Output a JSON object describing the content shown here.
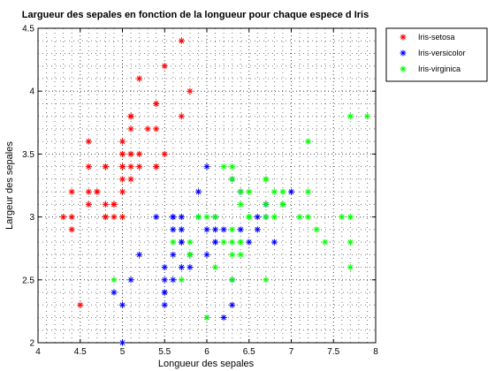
{
  "chart_data": {
    "type": "scatter",
    "title": "Largueur des sepales en fonction de la longueur pour chaque espece d Iris",
    "xlabel": "Longueur des sepales",
    "ylabel": "Largeur des sepales",
    "xlim": [
      4,
      8
    ],
    "ylim": [
      2,
      4.5
    ],
    "xticks": [
      "4",
      "4.5",
      "5",
      "5.5",
      "6",
      "6.5",
      "7",
      "7.5",
      "8"
    ],
    "yticks": [
      "2",
      "2.5",
      "3",
      "3.5",
      "4",
      "4.5"
    ],
    "grid": "dotted",
    "legend_position": "outside-top-right",
    "marker": "asterisk",
    "series": [
      {
        "name": "Iris-setosa",
        "color": "#ff0000",
        "points": [
          [
            5.1,
            3.5
          ],
          [
            4.9,
            3.0
          ],
          [
            4.7,
            3.2
          ],
          [
            4.6,
            3.1
          ],
          [
            5.0,
            3.6
          ],
          [
            5.4,
            3.9
          ],
          [
            4.6,
            3.4
          ],
          [
            5.0,
            3.4
          ],
          [
            4.4,
            2.9
          ],
          [
            4.9,
            3.1
          ],
          [
            5.4,
            3.7
          ],
          [
            4.8,
            3.4
          ],
          [
            4.8,
            3.0
          ],
          [
            4.3,
            3.0
          ],
          [
            5.8,
            4.0
          ],
          [
            5.7,
            4.4
          ],
          [
            5.4,
            3.9
          ],
          [
            5.1,
            3.5
          ],
          [
            5.7,
            3.8
          ],
          [
            5.1,
            3.8
          ],
          [
            5.4,
            3.4
          ],
          [
            5.1,
            3.7
          ],
          [
            4.6,
            3.6
          ],
          [
            5.1,
            3.3
          ],
          [
            4.8,
            3.4
          ],
          [
            5.0,
            3.0
          ],
          [
            5.0,
            3.4
          ],
          [
            5.2,
            3.5
          ],
          [
            5.2,
            3.4
          ],
          [
            4.7,
            3.2
          ],
          [
            4.8,
            3.1
          ],
          [
            5.4,
            3.4
          ],
          [
            5.2,
            4.1
          ],
          [
            5.5,
            4.2
          ],
          [
            4.9,
            3.1
          ],
          [
            5.0,
            3.2
          ],
          [
            5.5,
            3.5
          ],
          [
            4.9,
            3.1
          ],
          [
            4.4,
            3.0
          ],
          [
            5.1,
            3.4
          ],
          [
            5.0,
            3.5
          ],
          [
            4.5,
            2.3
          ],
          [
            4.4,
            3.2
          ],
          [
            5.0,
            3.5
          ],
          [
            5.1,
            3.8
          ],
          [
            4.8,
            3.0
          ],
          [
            5.1,
            3.8
          ],
          [
            4.6,
            3.2
          ],
          [
            5.3,
            3.7
          ],
          [
            5.0,
            3.3
          ]
        ]
      },
      {
        "name": "Iris-versicolor",
        "color": "#0000ff",
        "points": [
          [
            7.0,
            3.2
          ],
          [
            6.4,
            3.2
          ],
          [
            6.9,
            3.1
          ],
          [
            5.5,
            2.3
          ],
          [
            6.5,
            2.8
          ],
          [
            5.7,
            2.8
          ],
          [
            6.3,
            3.3
          ],
          [
            4.9,
            2.4
          ],
          [
            6.6,
            2.9
          ],
          [
            5.2,
            2.7
          ],
          [
            5.0,
            2.0
          ],
          [
            5.9,
            3.0
          ],
          [
            6.0,
            2.2
          ],
          [
            6.1,
            2.9
          ],
          [
            5.6,
            2.9
          ],
          [
            6.7,
            3.1
          ],
          [
            5.6,
            3.0
          ],
          [
            5.8,
            2.7
          ],
          [
            6.2,
            2.2
          ],
          [
            5.6,
            2.5
          ],
          [
            5.9,
            3.2
          ],
          [
            6.1,
            2.8
          ],
          [
            6.3,
            2.5
          ],
          [
            6.1,
            2.8
          ],
          [
            6.4,
            2.9
          ],
          [
            6.6,
            3.0
          ],
          [
            6.8,
            2.8
          ],
          [
            6.7,
            3.0
          ],
          [
            6.0,
            2.9
          ],
          [
            5.7,
            2.6
          ],
          [
            5.5,
            2.4
          ],
          [
            5.5,
            2.4
          ],
          [
            5.8,
            2.7
          ],
          [
            6.0,
            2.7
          ],
          [
            5.4,
            3.0
          ],
          [
            6.0,
            3.4
          ],
          [
            6.7,
            3.1
          ],
          [
            6.3,
            2.3
          ],
          [
            5.6,
            3.0
          ],
          [
            5.5,
            2.5
          ],
          [
            5.5,
            2.6
          ],
          [
            6.1,
            3.0
          ],
          [
            5.8,
            2.6
          ],
          [
            5.0,
            2.3
          ],
          [
            5.6,
            2.7
          ],
          [
            5.7,
            3.0
          ],
          [
            5.7,
            2.9
          ],
          [
            6.2,
            2.9
          ],
          [
            5.1,
            2.5
          ],
          [
            5.7,
            2.8
          ]
        ]
      },
      {
        "name": "Iris-virginica",
        "color": "#00ff00",
        "points": [
          [
            6.3,
            3.3
          ],
          [
            5.8,
            2.7
          ],
          [
            7.1,
            3.0
          ],
          [
            6.3,
            2.9
          ],
          [
            6.5,
            3.0
          ],
          [
            7.6,
            3.0
          ],
          [
            4.9,
            2.5
          ],
          [
            7.3,
            2.9
          ],
          [
            6.7,
            2.5
          ],
          [
            7.2,
            3.6
          ],
          [
            6.5,
            3.2
          ],
          [
            6.4,
            2.7
          ],
          [
            6.8,
            3.0
          ],
          [
            5.7,
            2.5
          ],
          [
            5.8,
            2.8
          ],
          [
            6.4,
            3.2
          ],
          [
            6.5,
            3.0
          ],
          [
            7.7,
            3.8
          ],
          [
            7.7,
            2.6
          ],
          [
            6.0,
            2.2
          ],
          [
            6.9,
            3.2
          ],
          [
            5.6,
            2.8
          ],
          [
            7.7,
            2.8
          ],
          [
            6.3,
            2.7
          ],
          [
            6.7,
            3.3
          ],
          [
            7.2,
            3.2
          ],
          [
            6.2,
            2.8
          ],
          [
            6.1,
            3.0
          ],
          [
            6.4,
            2.8
          ],
          [
            7.2,
            3.0
          ],
          [
            7.4,
            2.8
          ],
          [
            7.9,
            3.8
          ],
          [
            6.4,
            2.8
          ],
          [
            6.3,
            2.8
          ],
          [
            6.1,
            2.6
          ],
          [
            7.7,
            3.0
          ],
          [
            6.3,
            3.4
          ],
          [
            6.4,
            3.1
          ],
          [
            6.0,
            3.0
          ],
          [
            6.9,
            3.1
          ],
          [
            6.7,
            3.1
          ],
          [
            6.9,
            3.1
          ],
          [
            5.8,
            2.7
          ],
          [
            6.8,
            3.2
          ],
          [
            6.7,
            3.3
          ],
          [
            6.7,
            3.0
          ],
          [
            6.3,
            2.5
          ],
          [
            6.5,
            3.0
          ],
          [
            6.2,
            3.4
          ],
          [
            5.9,
            3.0
          ]
        ]
      }
    ]
  }
}
